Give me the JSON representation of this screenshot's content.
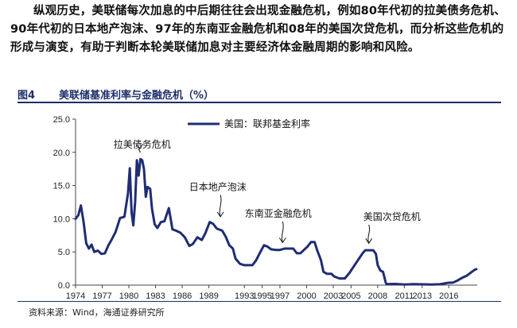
{
  "intro_text": "纵观历史，美联储每次加息的中后期往往会出现金融危机，例如80年代初的拉美债务危机、90年代初的日本地产泡沫、97年的东南亚金融危机和08年的美国次贷危机，而分析这些危机的形成与演变，有助于判断本轮美联储加息对主要经济体金融周期的影响和风险。",
  "figure": {
    "number": "图4",
    "title": "美联储基准利率与金融危机（%）",
    "source": "资料来源：Wind，海通证券研究所"
  },
  "colors": {
    "series": "#1f2d73",
    "header": "#1d2e6b"
  },
  "chart_data": {
    "type": "line",
    "title": "美联储基准利率与金融危机（%）",
    "xlabel": "",
    "ylabel": "%",
    "xlim": [
      1974,
      2019.2
    ],
    "ylim": [
      0,
      25
    ],
    "yticks": [
      "0.0",
      "5.0",
      "10.0",
      "15.0",
      "20.0",
      "25.0"
    ],
    "xticks": [
      "1974",
      "1977",
      "1980",
      "1983",
      "1986",
      "1989",
      "1993",
      "1995",
      "1997",
      "2000",
      "2003",
      "2005",
      "2008",
      "2011",
      "2013",
      "2016"
    ],
    "grid": false,
    "legend": {
      "position": "top",
      "entries": [
        "美国：联邦基金利率"
      ]
    },
    "series": [
      {
        "name": "美国：联邦基金利率",
        "points": [
          [
            1974.0,
            10.0
          ],
          [
            1974.3,
            10.5
          ],
          [
            1974.6,
            12.0
          ],
          [
            1974.9,
            9.5
          ],
          [
            1975.2,
            6.3
          ],
          [
            1975.5,
            5.5
          ],
          [
            1975.8,
            6.1
          ],
          [
            1976.1,
            5.0
          ],
          [
            1976.5,
            5.2
          ],
          [
            1976.9,
            4.7
          ],
          [
            1977.3,
            4.8
          ],
          [
            1977.7,
            6.0
          ],
          [
            1978.0,
            6.7
          ],
          [
            1978.5,
            8.0
          ],
          [
            1979.0,
            10.1
          ],
          [
            1979.5,
            10.3
          ],
          [
            1979.9,
            13.8
          ],
          [
            1980.1,
            17.6
          ],
          [
            1980.3,
            11.0
          ],
          [
            1980.5,
            9.0
          ],
          [
            1980.7,
            12.5
          ],
          [
            1980.9,
            18.8
          ],
          [
            1981.1,
            16.5
          ],
          [
            1981.3,
            19.0
          ],
          [
            1981.5,
            18.8
          ],
          [
            1981.7,
            17.5
          ],
          [
            1981.9,
            13.3
          ],
          [
            1982.1,
            14.8
          ],
          [
            1982.4,
            14.5
          ],
          [
            1982.6,
            11.5
          ],
          [
            1982.9,
            9.2
          ],
          [
            1983.2,
            8.6
          ],
          [
            1983.6,
            9.5
          ],
          [
            1984.0,
            9.6
          ],
          [
            1984.5,
            11.6
          ],
          [
            1984.9,
            8.4
          ],
          [
            1985.3,
            8.2
          ],
          [
            1985.8,
            7.9
          ],
          [
            1986.3,
            7.2
          ],
          [
            1986.8,
            5.9
          ],
          [
            1987.2,
            6.2
          ],
          [
            1987.7,
            7.2
          ],
          [
            1988.2,
            6.8
          ],
          [
            1988.6,
            7.8
          ],
          [
            1989.1,
            9.5
          ],
          [
            1989.5,
            9.2
          ],
          [
            1989.9,
            8.5
          ],
          [
            1990.5,
            8.2
          ],
          [
            1990.9,
            7.3
          ],
          [
            1991.3,
            6.0
          ],
          [
            1991.7,
            5.5
          ],
          [
            1992.0,
            4.0
          ],
          [
            1992.5,
            3.2
          ],
          [
            1993.0,
            3.0
          ],
          [
            1993.9,
            3.0
          ],
          [
            1994.3,
            3.7
          ],
          [
            1994.8,
            5.0
          ],
          [
            1995.2,
            6.0
          ],
          [
            1995.6,
            5.8
          ],
          [
            1996.0,
            5.4
          ],
          [
            1996.5,
            5.3
          ],
          [
            1997.0,
            5.3
          ],
          [
            1997.5,
            5.5
          ],
          [
            1998.0,
            5.5
          ],
          [
            1998.5,
            5.5
          ],
          [
            1998.9,
            4.8
          ],
          [
            1999.3,
            4.8
          ],
          [
            1999.7,
            5.3
          ],
          [
            2000.1,
            5.8
          ],
          [
            2000.5,
            6.5
          ],
          [
            2000.9,
            6.5
          ],
          [
            2001.2,
            5.2
          ],
          [
            2001.6,
            3.8
          ],
          [
            2001.9,
            2.0
          ],
          [
            2002.3,
            1.7
          ],
          [
            2002.8,
            1.7
          ],
          [
            2003.1,
            1.3
          ],
          [
            2003.7,
            1.0
          ],
          [
            2004.3,
            1.0
          ],
          [
            2004.8,
            1.8
          ],
          [
            2005.3,
            2.8
          ],
          [
            2005.8,
            3.8
          ],
          [
            2006.3,
            4.8
          ],
          [
            2006.6,
            5.25
          ],
          [
            2007.0,
            5.25
          ],
          [
            2007.5,
            5.25
          ],
          [
            2007.8,
            4.7
          ],
          [
            2008.0,
            3.0
          ],
          [
            2008.3,
            2.2
          ],
          [
            2008.6,
            2.0
          ],
          [
            2008.9,
            0.4
          ],
          [
            2009.0,
            0.15
          ],
          [
            2010.0,
            0.18
          ],
          [
            2011.0,
            0.1
          ],
          [
            2012.0,
            0.15
          ],
          [
            2013.0,
            0.12
          ],
          [
            2014.0,
            0.09
          ],
          [
            2015.0,
            0.13
          ],
          [
            2015.9,
            0.35
          ],
          [
            2016.5,
            0.4
          ],
          [
            2017.0,
            0.7
          ],
          [
            2017.5,
            1.1
          ],
          [
            2018.0,
            1.4
          ],
          [
            2018.5,
            1.9
          ],
          [
            2018.9,
            2.3
          ],
          [
            2019.1,
            2.4
          ]
        ]
      }
    ],
    "annotations": [
      {
        "label": "拉美债务危机",
        "x": 1981.2,
        "y": 20.5,
        "label_x": 1981.5,
        "label_y": 20.7
      },
      {
        "label": "日本地产泡沫",
        "x": 1990.3,
        "y": 10.3,
        "label_x": 1990.0,
        "label_y": 14.3
      },
      {
        "label": "东南亚金融危机",
        "x": 1997.3,
        "y": 6.4,
        "label_x": 1996.8,
        "label_y": 10.3
      },
      {
        "label": "美国次贷危机",
        "x": 2007.0,
        "y": 6.3,
        "label_x": 2009.6,
        "label_y": 9.8
      }
    ]
  }
}
